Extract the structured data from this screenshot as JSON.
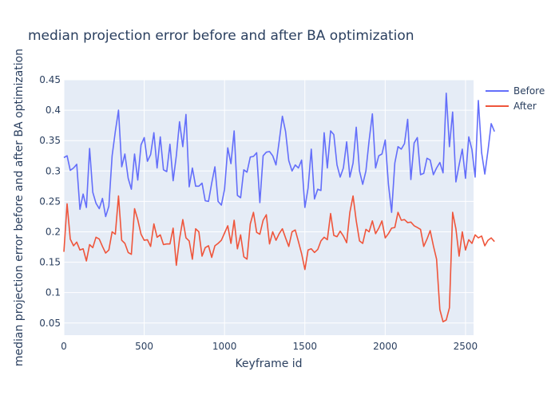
{
  "chart_data": {
    "type": "line",
    "title": "median projection error before and after BA optimization",
    "xlabel": "Keyframe id",
    "ylabel": "median projection error before and after BA optimization",
    "xlim": [
      0,
      2550
    ],
    "ylim": [
      0.03,
      0.45
    ],
    "x_ticks": [
      0,
      500,
      1000,
      1500,
      2000,
      2500
    ],
    "y_ticks": [
      0.05,
      0.1,
      0.15,
      0.2,
      0.25,
      0.3,
      0.35,
      0.4,
      0.45
    ],
    "x_tick_labels": [
      "0",
      "500",
      "1000",
      "1500",
      "2000",
      "2500"
    ],
    "y_tick_labels": [
      "0.05",
      "0.1",
      "0.15",
      "0.2",
      "0.25",
      "0.3",
      "0.35",
      "0.4",
      "0.45"
    ],
    "legend": "top-right",
    "grid": true,
    "x_step": 20,
    "series": [
      {
        "name": "Before",
        "color": "#636efa",
        "values": [
          0.322,
          0.325,
          0.301,
          0.305,
          0.311,
          0.237,
          0.262,
          0.24,
          0.337,
          0.265,
          0.247,
          0.238,
          0.255,
          0.225,
          0.242,
          0.325,
          0.365,
          0.4,
          0.307,
          0.328,
          0.288,
          0.27,
          0.328,
          0.285,
          0.343,
          0.355,
          0.316,
          0.327,
          0.363,
          0.305,
          0.356,
          0.302,
          0.299,
          0.344,
          0.284,
          0.325,
          0.381,
          0.34,
          0.393,
          0.274,
          0.305,
          0.275,
          0.275,
          0.28,
          0.251,
          0.25,
          0.28,
          0.307,
          0.25,
          0.244,
          0.27,
          0.338,
          0.312,
          0.366,
          0.26,
          0.256,
          0.302,
          0.298,
          0.323,
          0.324,
          0.33,
          0.248,
          0.325,
          0.331,
          0.332,
          0.325,
          0.31,
          0.349,
          0.39,
          0.365,
          0.317,
          0.3,
          0.31,
          0.305,
          0.318,
          0.24,
          0.272,
          0.336,
          0.254,
          0.27,
          0.268,
          0.363,
          0.305,
          0.366,
          0.36,
          0.31,
          0.29,
          0.305,
          0.348,
          0.29,
          0.313,
          0.372,
          0.3,
          0.278,
          0.3,
          0.35,
          0.394,
          0.305,
          0.325,
          0.328,
          0.351,
          0.278,
          0.232,
          0.313,
          0.34,
          0.336,
          0.345,
          0.385,
          0.286,
          0.346,
          0.355,
          0.294,
          0.296,
          0.321,
          0.318,
          0.294,
          0.305,
          0.314,
          0.297,
          0.428,
          0.34,
          0.397,
          0.282,
          0.31,
          0.336,
          0.288,
          0.356,
          0.335,
          0.29,
          0.416,
          0.33,
          0.295,
          0.334,
          0.378,
          0.365
        ]
      },
      {
        "name": "After",
        "color": "#ef553b",
        "values": [
          0.167,
          0.246,
          0.188,
          0.177,
          0.183,
          0.17,
          0.172,
          0.152,
          0.179,
          0.174,
          0.191,
          0.188,
          0.176,
          0.165,
          0.17,
          0.2,
          0.196,
          0.259,
          0.186,
          0.181,
          0.166,
          0.163,
          0.238,
          0.22,
          0.196,
          0.186,
          0.187,
          0.176,
          0.213,
          0.191,
          0.195,
          0.179,
          0.18,
          0.18,
          0.206,
          0.145,
          0.188,
          0.22,
          0.19,
          0.185,
          0.155,
          0.205,
          0.2,
          0.16,
          0.174,
          0.177,
          0.158,
          0.177,
          0.181,
          0.186,
          0.198,
          0.21,
          0.181,
          0.219,
          0.172,
          0.195,
          0.159,
          0.155,
          0.213,
          0.232,
          0.199,
          0.196,
          0.219,
          0.228,
          0.18,
          0.2,
          0.186,
          0.197,
          0.205,
          0.19,
          0.176,
          0.2,
          0.203,
          0.184,
          0.164,
          0.138,
          0.17,
          0.172,
          0.166,
          0.171,
          0.185,
          0.191,
          0.187,
          0.23,
          0.194,
          0.192,
          0.201,
          0.193,
          0.182,
          0.232,
          0.259,
          0.218,
          0.185,
          0.181,
          0.204,
          0.2,
          0.218,
          0.197,
          0.206,
          0.218,
          0.19,
          0.197,
          0.206,
          0.207,
          0.232,
          0.219,
          0.22,
          0.215,
          0.216,
          0.21,
          0.207,
          0.204,
          0.176,
          0.188,
          0.202,
          0.177,
          0.155,
          0.072,
          0.052,
          0.055,
          0.075,
          0.232,
          0.205,
          0.16,
          0.2,
          0.17,
          0.187,
          0.181,
          0.195,
          0.19,
          0.193,
          0.177,
          0.186,
          0.19,
          0.184
        ]
      }
    ]
  }
}
